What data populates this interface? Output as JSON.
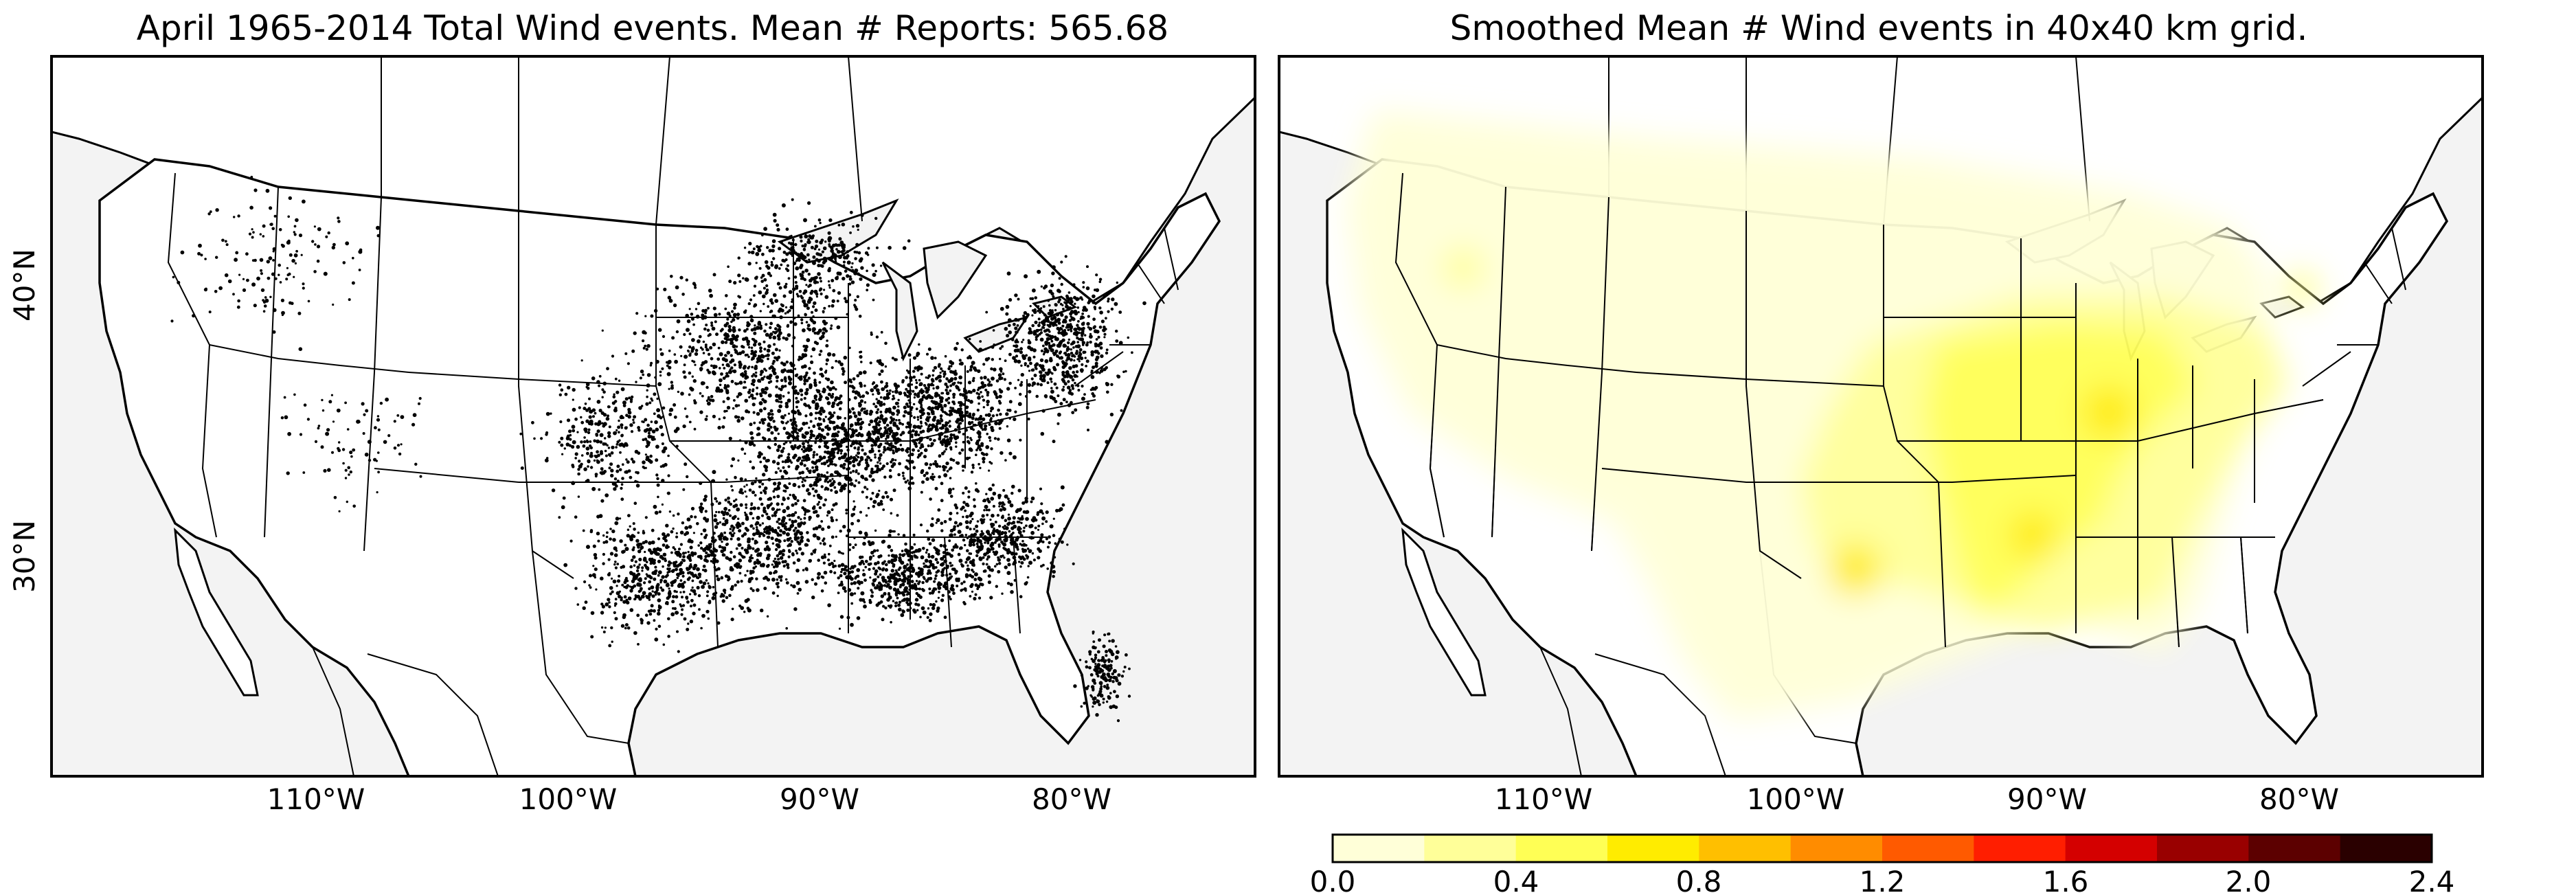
{
  "left_panel": {
    "title": "April 1965-2014 Total Wind events. Mean # Reports: 565.68",
    "lat_labels": [
      "40°N",
      "30°N"
    ],
    "lon_labels": [
      "110°W",
      "100°W",
      "90°W",
      "80°W"
    ],
    "ocean_color": "#f3f3f3",
    "land_color": "#ffffff",
    "point_color": "#000000"
  },
  "right_panel": {
    "title": "Smoothed Mean # Wind events in 40x40 km grid.",
    "lon_labels": [
      "110°W",
      "100°W",
      "90°W",
      "80°W"
    ]
  },
  "colorbar": {
    "tick_labels": [
      "0.0",
      "0.4",
      "0.8",
      "1.2",
      "1.6",
      "2.0",
      "2.4"
    ],
    "colors": [
      "#ffffd8",
      "#ffff99",
      "#ffff55",
      "#ffec00",
      "#ffbf00",
      "#ff8c00",
      "#ff5a00",
      "#ff1e00",
      "#d40000",
      "#990000",
      "#5c0000",
      "#2a0000"
    ]
  },
  "density_colors": {
    "low": "#ffffd8",
    "mid": "#ffff99",
    "high": "#ffff55",
    "peak": "#ffec00"
  }
}
